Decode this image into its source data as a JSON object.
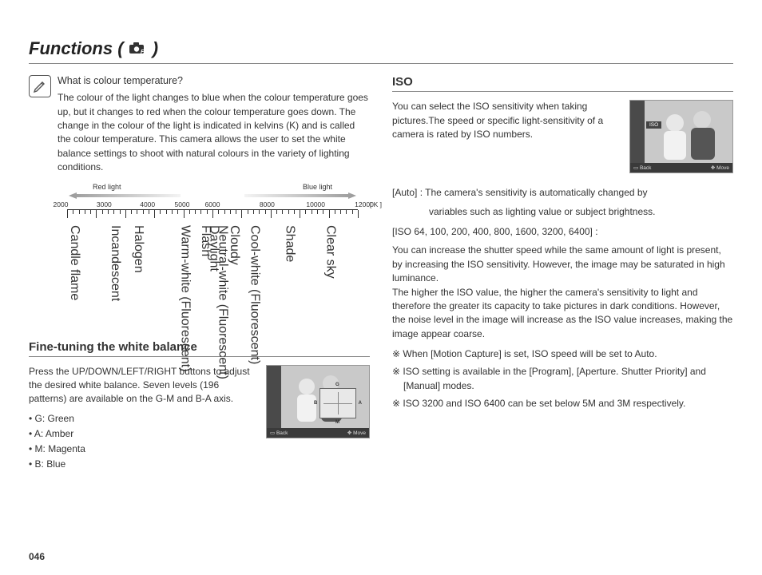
{
  "page": {
    "title_prefix": "Functions ( ",
    "title_suffix": " )",
    "number": "046"
  },
  "colour_temp": {
    "question": "What is colour temperature?",
    "body": "The colour of the light changes to blue when the colour temperature goes up, but it changes to red when the colour temperature goes down. The change in the colour of the light is indicated in kelvins (K) and is called the colour temperature. This camera allows the user to set the white balance settings to shoot with natural colours in the variety of lighting conditions.",
    "scale": {
      "left_label": "Red light",
      "right_label": "Blue light",
      "unit": "[ K ]",
      "ticks": [
        "2000",
        "3000",
        "4000",
        "5000",
        "6000",
        "8000",
        "10000",
        "12000"
      ],
      "positions_pct": [
        0,
        14.3,
        28.6,
        40,
        50,
        68,
        84,
        100
      ],
      "labels": [
        {
          "text": "Candle flame",
          "left_pct": 0
        },
        {
          "text": "Incandescent",
          "left_pct": 14
        },
        {
          "text": "Halogen",
          "left_pct": 22
        },
        {
          "text": "Warm-white (Fluorescent)",
          "left_pct": 38
        },
        {
          "text": "Flash",
          "left_pct": 45
        },
        {
          "text": "Daylight",
          "left_pct": 48
        },
        {
          "text": "Neutral-white (Fluorescent)",
          "left_pct": 51
        },
        {
          "text": "Cloudy",
          "left_pct": 55
        },
        {
          "text": "Cool-white (Fluorescent)",
          "left_pct": 62
        },
        {
          "text": "Shade",
          "left_pct": 74
        },
        {
          "text": "Clear sky",
          "left_pct": 88
        }
      ],
      "red_gradient": [
        "#b0b0b0",
        "#f2f2f2"
      ],
      "blue_gradient": [
        "#f2f2f2",
        "#b0b0b0"
      ]
    }
  },
  "wb": {
    "heading": "Fine-tuning the white balance",
    "body": "Press the UP/DOWN/LEFT/RIGHT buttons to adjust the desired white balance. Seven levels (196 patterns) are available on the G-M and B-A axis.",
    "bullets": [
      "• G: Green",
      "• A: Amber",
      "• M: Magenta",
      "• B: Blue"
    ],
    "thumb": {
      "back": "Back",
      "move": "Move",
      "G": "G",
      "B": "B",
      "A": "A",
      "M": "M"
    }
  },
  "iso": {
    "heading": "ISO",
    "intro": "You can select the ISO sensitivity when taking pictures.The speed or specific light-sensitivity of a camera is rated by ISO numbers.",
    "thumb": {
      "back": "Back",
      "move": "Move",
      "badge": "ISO"
    },
    "auto_label": "[Auto] : ",
    "auto_line1": "The camera's sensitivity is automatically changed by",
    "auto_line2": "variables such as lighting value or subject brightness.",
    "values_label": "[ISO 64, 100, 200, 400, 800, 1600, 3200, 6400] :",
    "values_body": "You can increase the shutter speed while the same amount of light is present, by increasing the ISO sensitivity. However, the image may be saturated in high luminance.\nThe higher the ISO value, the higher the camera's sensitivity to light and therefore the greater its capacity to take pictures in dark conditions. However, the noise level in the image will increase as the ISO value increases, making the image appear coarse.",
    "stars": [
      "※ When [Motion Capture] is set, ISO speed will be set to Auto.",
      "※ ISO setting is available in the [Program], [Aperture. Shutter Priority] and [Manual] modes.",
      "※ ISO 3200 and ISO 6400 can be set below 5M and 3M respectively."
    ]
  },
  "colors": {
    "text": "#333333",
    "rule": "#888888",
    "thumb_bg": "#c9c9c9",
    "thumb_bar": "#3a3a3a"
  }
}
